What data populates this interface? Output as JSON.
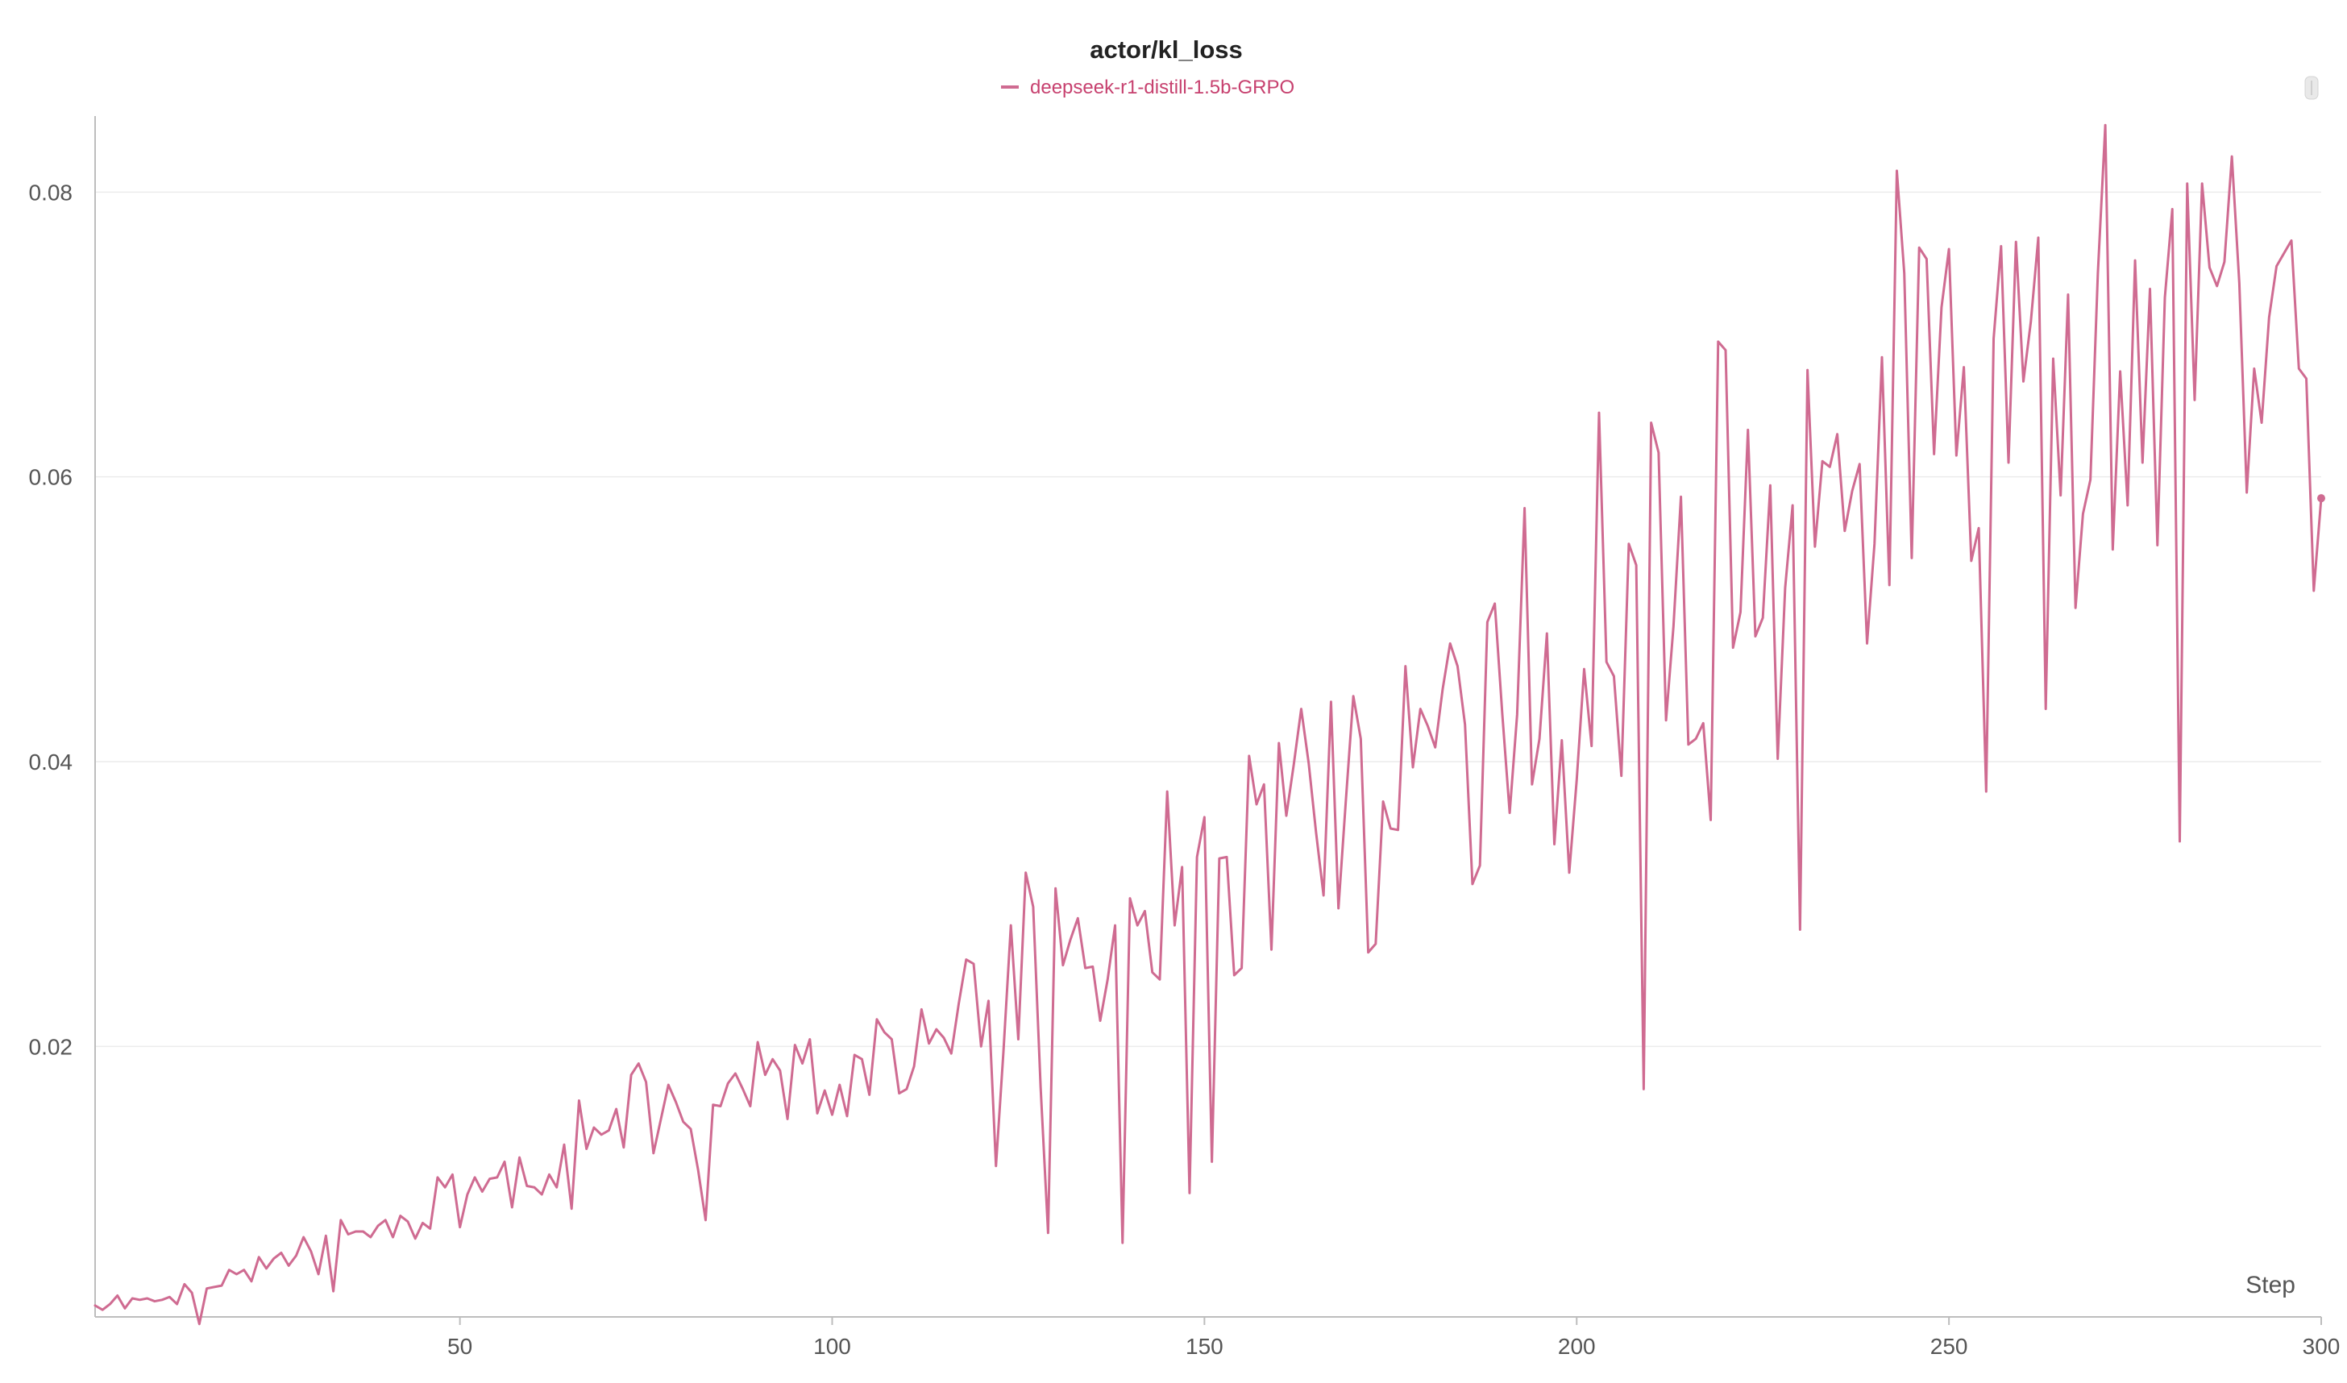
{
  "chart": {
    "title": "actor/kl_loss",
    "legend_label": "deepseek-r1-distill-1.5b-GRPO",
    "x_axis_label": "Step"
  },
  "colors": {
    "series": "#cf6b91",
    "legend": "#c7416f",
    "grid": "#ececec",
    "axis": "#bdbdbd"
  },
  "icons": {
    "scroll-handle": "vertical-scroll-handle"
  },
  "chart_data": {
    "type": "line",
    "title": "actor/kl_loss",
    "xlabel": "Step",
    "ylabel": "",
    "xlim": [
      1,
      300
    ],
    "ylim": [
      0.001,
      0.085
    ],
    "xticks": [
      50,
      100,
      150,
      200,
      250,
      300
    ],
    "yticks": [
      0.02,
      0.04,
      0.06,
      0.08
    ],
    "grid": true,
    "legend_position": "top-center",
    "series": [
      {
        "name": "deepseek-r1-distill-1.5b-GRPO",
        "color": "#cf6b91",
        "x": [
          1,
          2,
          3,
          4,
          5,
          6,
          7,
          8,
          9,
          10,
          11,
          12,
          13,
          14,
          15,
          16,
          17,
          18,
          19,
          20,
          21,
          22,
          23,
          24,
          25,
          26,
          27,
          28,
          29,
          30,
          31,
          32,
          33,
          34,
          35,
          36,
          37,
          38,
          39,
          40,
          41,
          42,
          43,
          44,
          45,
          46,
          47,
          48,
          49,
          50,
          51,
          52,
          53,
          54,
          55,
          56,
          57,
          58,
          59,
          60,
          61,
          62,
          63,
          64,
          65,
          66,
          67,
          68,
          69,
          70,
          71,
          72,
          73,
          74,
          75,
          76,
          77,
          78,
          79,
          80,
          81,
          82,
          83,
          84,
          85,
          86,
          87,
          88,
          89,
          90,
          91,
          92,
          93,
          94,
          95,
          96,
          97,
          98,
          99,
          100,
          101,
          102,
          103,
          104,
          105,
          106,
          107,
          108,
          109,
          110,
          111,
          112,
          113,
          114,
          115,
          116,
          117,
          118,
          119,
          120,
          121,
          122,
          123,
          124,
          125,
          126,
          127,
          128,
          129,
          130,
          131,
          132,
          133,
          134,
          135,
          136,
          137,
          138,
          139,
          140,
          141,
          142,
          143,
          144,
          145,
          146,
          147,
          148,
          149,
          150,
          151,
          152,
          153,
          154,
          155,
          156,
          157,
          158,
          159,
          160,
          161,
          162,
          163,
          164,
          165,
          166,
          167,
          168,
          169,
          170,
          171,
          172,
          173,
          174,
          175,
          176,
          177,
          178,
          179,
          180,
          181,
          182,
          183,
          184,
          185,
          186,
          187,
          188,
          189,
          190,
          191,
          192,
          193,
          194,
          195,
          196,
          197,
          198,
          199,
          200,
          201,
          202,
          203,
          204,
          205,
          206,
          207,
          208,
          209,
          210,
          211,
          212,
          213,
          214,
          215,
          216,
          217,
          218,
          219,
          220,
          221,
          222,
          223,
          224,
          225,
          226,
          227,
          228,
          229,
          230,
          231,
          232,
          233,
          234,
          235,
          236,
          237,
          238,
          239,
          240,
          241,
          242,
          243,
          244,
          245,
          246,
          247,
          248,
          249,
          250,
          251,
          252,
          253,
          254,
          255,
          256,
          257,
          258,
          259,
          260,
          261,
          262,
          263,
          264,
          265,
          266,
          267,
          268,
          269,
          270,
          271,
          272,
          273,
          274,
          275,
          276,
          277,
          278,
          279,
          280,
          281,
          282,
          283,
          284,
          285,
          286,
          287,
          288,
          289,
          290,
          291,
          292,
          293,
          294,
          295,
          296,
          297,
          298,
          299,
          300
        ],
        "y": [
          0.0018,
          0.0015,
          0.0019,
          0.0025,
          0.0016,
          0.0023,
          0.0022,
          0.0023,
          0.0021,
          0.0022,
          0.0024,
          0.0019,
          0.0033,
          0.0027,
          0.0005,
          0.003,
          0.0031,
          0.0032,
          0.0043,
          0.004,
          0.0043,
          0.0035,
          0.0052,
          0.0044,
          0.0051,
          0.0055,
          0.0046,
          0.0053,
          0.0066,
          0.0056,
          0.004,
          0.0067,
          0.0028,
          0.0078,
          0.0068,
          0.007,
          0.007,
          0.0066,
          0.0074,
          0.0078,
          0.0066,
          0.0081,
          0.0077,
          0.0065,
          0.0076,
          0.0072,
          0.0108,
          0.0101,
          0.011,
          0.0073,
          0.0096,
          0.0108,
          0.0098,
          0.0107,
          0.0108,
          0.0119,
          0.0087,
          0.0122,
          0.0102,
          0.0101,
          0.0096,
          0.011,
          0.0101,
          0.0131,
          0.0086,
          0.0162,
          0.0128,
          0.0143,
          0.0138,
          0.0141,
          0.0156,
          0.0129,
          0.018,
          0.0188,
          0.0175,
          0.0125,
          0.0149,
          0.0173,
          0.0161,
          0.0147,
          0.0142,
          0.0113,
          0.0078,
          0.0159,
          0.0158,
          0.0174,
          0.0181,
          0.017,
          0.0158,
          0.0203,
          0.018,
          0.0191,
          0.0183,
          0.0149,
          0.0201,
          0.0188,
          0.0205,
          0.0153,
          0.0169,
          0.0152,
          0.0173,
          0.0151,
          0.0194,
          0.0191,
          0.0166,
          0.0219,
          0.021,
          0.0205,
          0.0167,
          0.017,
          0.0186,
          0.0226,
          0.0202,
          0.0212,
          0.0206,
          0.0195,
          0.023,
          0.0261,
          0.0258,
          0.02,
          0.0232,
          0.0116,
          0.0196,
          0.0285,
          0.0205,
          0.0322,
          0.0298,
          0.0171,
          0.0069,
          0.0311,
          0.0257,
          0.0275,
          0.029,
          0.0255,
          0.0256,
          0.0218,
          0.0247,
          0.0285,
          0.0062,
          0.0304,
          0.0285,
          0.0295,
          0.0252,
          0.0247,
          0.0379,
          0.0285,
          0.0326,
          0.0097,
          0.0333,
          0.0361,
          0.0119,
          0.0332,
          0.0333,
          0.025,
          0.0255,
          0.0404,
          0.037,
          0.0384,
          0.0268,
          0.0413,
          0.0362,
          0.0398,
          0.0437,
          0.0399,
          0.035,
          0.0306,
          0.0442,
          0.0297,
          0.0373,
          0.0446,
          0.0416,
          0.0266,
          0.0272,
          0.0372,
          0.0353,
          0.0352,
          0.0467,
          0.0396,
          0.0437,
          0.0425,
          0.041,
          0.0451,
          0.0483,
          0.0467,
          0.0426,
          0.0314,
          0.0327,
          0.0498,
          0.0511,
          0.0434,
          0.0364,
          0.0433,
          0.0578,
          0.0384,
          0.0416,
          0.049,
          0.0342,
          0.0415,
          0.0322,
          0.0387,
          0.0465,
          0.0411,
          0.0645,
          0.047,
          0.046,
          0.039,
          0.0553,
          0.0538,
          0.017,
          0.0638,
          0.0617,
          0.0429,
          0.0495,
          0.0586,
          0.0412,
          0.0416,
          0.0427,
          0.0359,
          0.0695,
          0.0689,
          0.048,
          0.0505,
          0.0633,
          0.0488,
          0.0501,
          0.0594,
          0.0402,
          0.0522,
          0.058,
          0.0282,
          0.0675,
          0.0551,
          0.0611,
          0.0607,
          0.063,
          0.0562,
          0.059,
          0.0609,
          0.0483,
          0.0553,
          0.0684,
          0.0524,
          0.0815,
          0.0743,
          0.0543,
          0.0761,
          0.0753,
          0.0616,
          0.0719,
          0.076,
          0.0615,
          0.0677,
          0.0541,
          0.0564,
          0.0379,
          0.0697,
          0.0762,
          0.061,
          0.0765,
          0.0667,
          0.0709,
          0.0768,
          0.0437,
          0.0683,
          0.0587,
          0.0728,
          0.0508,
          0.0574,
          0.0598,
          0.0743,
          0.0847,
          0.0549,
          0.0674,
          0.058,
          0.0752,
          0.061,
          0.0732,
          0.0552,
          0.0726,
          0.0788,
          0.0344,
          0.0806,
          0.0654,
          0.0806,
          0.0747,
          0.0734,
          0.0751,
          0.0825,
          0.0736,
          0.0589,
          0.0676,
          0.0638,
          0.0712,
          0.0748,
          0.0757,
          0.0766,
          0.0676,
          0.0669,
          0.052,
          0.0585
        ]
      }
    ]
  }
}
